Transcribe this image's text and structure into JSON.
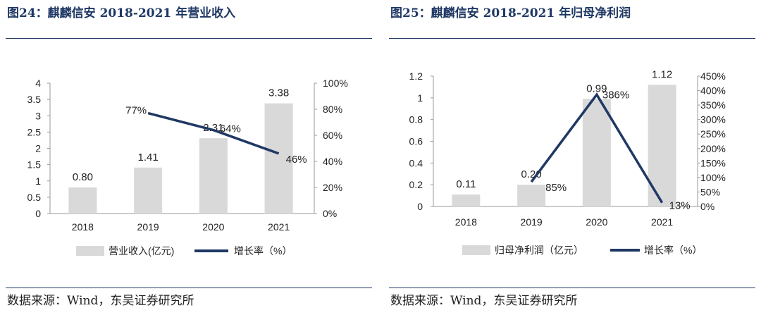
{
  "chart_data": [
    {
      "type": "bar",
      "figure_title": "图24：麒麟信安 2018-2021 年营业收入",
      "source": "数据来源：Wind，东吴证券研究所",
      "categories": [
        "2018",
        "2019",
        "2020",
        "2021"
      ],
      "bar_series": {
        "name": "营业收入(亿元)",
        "values": [
          0.8,
          1.41,
          2.31,
          3.38
        ],
        "labels": [
          "0.80",
          "1.41",
          "2.31",
          "3.38"
        ],
        "color": "#d9d9d9"
      },
      "line_series": {
        "name": "增长率（%）",
        "values": [
          null,
          77,
          64,
          46
        ],
        "labels": [
          "",
          "77%",
          "64%",
          "46%"
        ],
        "color": "#1f3864"
      },
      "left_axis": {
        "min": 0,
        "max": 4,
        "ticks": [
          "0",
          "0.5",
          "1",
          "1.5",
          "2",
          "2.5",
          "3",
          "3.5",
          "4"
        ]
      },
      "right_axis": {
        "min": 0,
        "max": 100,
        "ticks": [
          "0%",
          "20%",
          "40%",
          "60%",
          "80%",
          "100%"
        ]
      },
      "legend": "bottom",
      "grid": false
    },
    {
      "type": "bar",
      "figure_title": "图25：麒麟信安 2018-2021 年归母净利润",
      "source": "数据来源：Wind，东吴证券研究所",
      "categories": [
        "2018",
        "2019",
        "2020",
        "2021"
      ],
      "bar_series": {
        "name": "归母净利润（亿元）",
        "values": [
          0.11,
          0.2,
          0.99,
          1.12
        ],
        "labels": [
          "0.11",
          "0.20",
          "0.99",
          "1.12"
        ],
        "color": "#d9d9d9"
      },
      "line_series": {
        "name": "增长率（%）",
        "values": [
          null,
          85,
          386,
          13
        ],
        "labels": [
          "",
          "85%",
          "386%",
          "13%"
        ],
        "color": "#1f3864"
      },
      "left_axis": {
        "min": 0,
        "max": 1.2,
        "ticks": [
          "0",
          "0.2",
          "0.4",
          "0.6",
          "0.8",
          "1",
          "1.2"
        ]
      },
      "right_axis": {
        "min": 0,
        "max": 450,
        "ticks": [
          "0%",
          "50%",
          "100%",
          "150%",
          "200%",
          "250%",
          "300%",
          "350%",
          "400%",
          "450%"
        ]
      },
      "legend": "bottom",
      "grid": false
    }
  ]
}
